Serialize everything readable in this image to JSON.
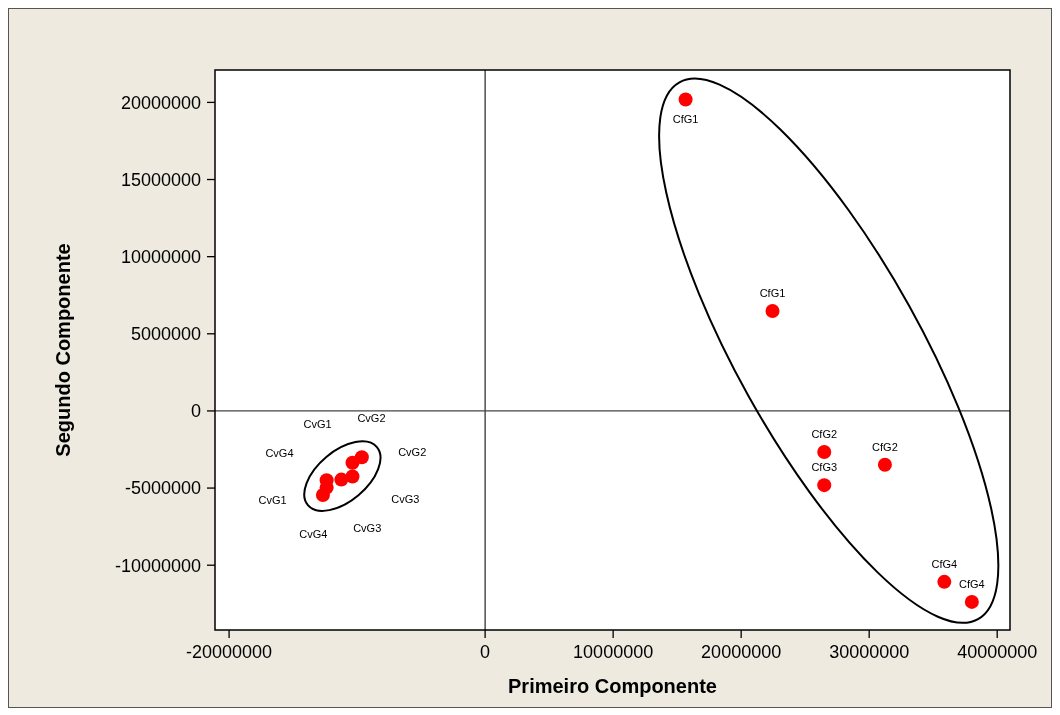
{
  "chart_data": {
    "type": "scatter",
    "xlabel": "Primeiro Componente",
    "ylabel": "Segundo Componente",
    "xlim": [
      -21100000,
      41000000
    ],
    "xticks": [
      -20000000,
      0,
      10000000,
      20000000,
      30000000,
      40000000
    ],
    "ylim": [
      -14200000,
      22100000
    ],
    "yticks": [
      -10000000,
      -5000000,
      0,
      5000000,
      10000000,
      15000000,
      20000000
    ],
    "marker": "circle",
    "grid": false,
    "series": [
      {
        "color": "#ff0000",
        "x": [
          -9630000,
          -10360000,
          -10360000,
          -11230000,
          -12380000,
          -12670000,
          -12380000
        ],
        "values": [
          -3000000,
          -3360000,
          -4250000,
          -4450000,
          -4490000,
          -5450000,
          -4970000
        ]
      },
      {
        "color": "#ff0000",
        "x": [
          15660000,
          22450000,
          26490000,
          26490000,
          31230000,
          35870000,
          38020000
        ],
        "values": [
          20190000,
          6480000,
          -2660000,
          -4810000,
          -3490000,
          -11080000,
          -12380000
        ],
        "value_labels": [
          "CfG1",
          "CfG1",
          "CfG2",
          "CfG3",
          "CfG2",
          "CfG4",
          "CfG4"
        ]
      }
    ],
    "ref_lines": [
      {
        "axis": "x",
        "value": 0
      },
      {
        "axis": "y",
        "value": 0
      }
    ],
    "annotations": [
      "CvG1",
      "CvG2",
      "CvG2",
      "CvG3",
      "CvG3",
      "CvG4",
      "CvG1",
      "CvG4"
    ]
  }
}
